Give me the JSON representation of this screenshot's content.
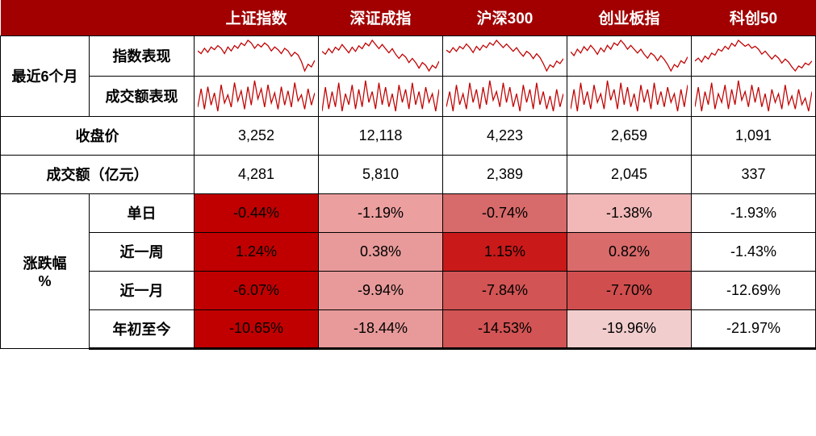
{
  "colors": {
    "header_bg": "#a20000",
    "header_text": "#ffffff",
    "border": "#000000",
    "spark_line": "#c00000",
    "cell_bg": "#ffffff",
    "heat_scale": [
      "#c00000",
      "#d94b4b",
      "#e28a8a",
      "#f0c2c2",
      "#ffffff"
    ]
  },
  "indices": [
    "上证指数",
    "深证成指",
    "沪深300",
    "创业板指",
    "科创50"
  ],
  "row_labels": {
    "six_month": "最近6个月",
    "index_perf": "指数表现",
    "volume_perf": "成交额表现",
    "close": "收盘价",
    "turnover": "成交额（亿元）",
    "change_pct": "涨跌幅\n%",
    "day": "单日",
    "week": "近一周",
    "month": "近一月",
    "ytd": "年初至今"
  },
  "close": [
    "3,252",
    "12,118",
    "4,223",
    "2,659",
    "1,091"
  ],
  "turnover": [
    "4,281",
    "5,810",
    "2,389",
    "2,045",
    "337"
  ],
  "change": {
    "day": {
      "vals": [
        "-0.44%",
        "-1.19%",
        "-0.74%",
        "-1.38%",
        "-1.93%"
      ],
      "bg": [
        "#c00000",
        "#ec9f9f",
        "#d76a6a",
        "#f2b8b8",
        "#ffffff"
      ],
      "fg": [
        "#000000",
        "#000000",
        "#000000",
        "#000000",
        "#000000"
      ]
    },
    "week": {
      "vals": [
        "1.24%",
        "0.38%",
        "1.15%",
        "0.82%",
        "-1.43%"
      ],
      "bg": [
        "#c00000",
        "#e89a9a",
        "#c91919",
        "#d96b6b",
        "#ffffff"
      ],
      "fg": [
        "#000000",
        "#000000",
        "#000000",
        "#000000",
        "#000000"
      ]
    },
    "month": {
      "vals": [
        "-6.07%",
        "-9.94%",
        "-7.84%",
        "-7.70%",
        "-12.69%"
      ],
      "bg": [
        "#c00000",
        "#e89a9a",
        "#d25454",
        "#d14e4e",
        "#ffffff"
      ],
      "fg": [
        "#000000",
        "#000000",
        "#000000",
        "#000000",
        "#000000"
      ]
    },
    "ytd": {
      "vals": [
        "-10.65%",
        "-18.44%",
        "-14.53%",
        "-19.96%",
        "-21.97%"
      ],
      "bg": [
        "#c00000",
        "#e89a9a",
        "#d25454",
        "#f2cdcd",
        "#ffffff"
      ],
      "fg": [
        "#000000",
        "#000000",
        "#000000",
        "#000000",
        "#000000"
      ]
    }
  },
  "sparklines": {
    "index_perf": [
      [
        22,
        20,
        24,
        21,
        25,
        23,
        26,
        24,
        20,
        25,
        22,
        26,
        24,
        28,
        26,
        30,
        28,
        24,
        27,
        25,
        28,
        26,
        22,
        25,
        23,
        20,
        24,
        22,
        18,
        21,
        19,
        14,
        7,
        12,
        10,
        15
      ],
      [
        20,
        18,
        22,
        19,
        23,
        21,
        25,
        22,
        19,
        23,
        20,
        24,
        22,
        26,
        24,
        28,
        25,
        22,
        25,
        22,
        19,
        22,
        18,
        15,
        18,
        16,
        12,
        15,
        12,
        8,
        12,
        10,
        6,
        10,
        8,
        13
      ],
      [
        21,
        19,
        23,
        20,
        24,
        22,
        26,
        23,
        19,
        24,
        21,
        25,
        23,
        27,
        25,
        29,
        26,
        23,
        26,
        23,
        20,
        23,
        19,
        16,
        20,
        18,
        14,
        18,
        15,
        10,
        4,
        9,
        7,
        12,
        10,
        14
      ],
      [
        18,
        15,
        20,
        17,
        22,
        19,
        23,
        20,
        16,
        21,
        18,
        23,
        20,
        25,
        23,
        27,
        24,
        20,
        23,
        20,
        17,
        20,
        16,
        13,
        17,
        15,
        11,
        15,
        12,
        8,
        3,
        8,
        6,
        11,
        9,
        14
      ],
      [
        15,
        18,
        14,
        20,
        17,
        23,
        21,
        27,
        25,
        30,
        27,
        33,
        30,
        36,
        33,
        30,
        32,
        28,
        30,
        27,
        22,
        25,
        21,
        17,
        21,
        18,
        13,
        17,
        14,
        9,
        5,
        10,
        8,
        13,
        11,
        15
      ]
    ],
    "volume_perf": [
      [
        10,
        28,
        8,
        30,
        12,
        24,
        6,
        32,
        14,
        22,
        10,
        34,
        16,
        26,
        8,
        30,
        12,
        36,
        18,
        28,
        10,
        32,
        14,
        24,
        8,
        30,
        12,
        26,
        10,
        34,
        16,
        22,
        8,
        28,
        12,
        24
      ],
      [
        8,
        30,
        10,
        26,
        12,
        34,
        8,
        24,
        14,
        32,
        10,
        28,
        12,
        36,
        16,
        26,
        10,
        34,
        14,
        30,
        12,
        24,
        8,
        32,
        16,
        28,
        10,
        34,
        14,
        26,
        10,
        30,
        16,
        24,
        8,
        28
      ],
      [
        12,
        26,
        8,
        32,
        14,
        24,
        10,
        34,
        16,
        28,
        10,
        30,
        14,
        36,
        18,
        26,
        12,
        34,
        16,
        30,
        12,
        24,
        8,
        32,
        16,
        28,
        10,
        34,
        14,
        26,
        10,
        22,
        8,
        28,
        12,
        24
      ],
      [
        10,
        28,
        8,
        34,
        14,
        26,
        10,
        32,
        16,
        24,
        10,
        36,
        18,
        28,
        10,
        34,
        14,
        30,
        12,
        24,
        8,
        32,
        16,
        28,
        10,
        34,
        14,
        26,
        12,
        30,
        16,
        24,
        8,
        28,
        12,
        32
      ],
      [
        12,
        30,
        8,
        26,
        14,
        34,
        10,
        24,
        16,
        32,
        10,
        28,
        14,
        36,
        18,
        26,
        12,
        32,
        16,
        30,
        12,
        24,
        8,
        28,
        16,
        24,
        10,
        32,
        14,
        22,
        10,
        28,
        14,
        20,
        8,
        26
      ]
    ]
  },
  "spark_style": {
    "stroke": "#c00000",
    "stroke_width": 1.3,
    "viewbox_w": 150,
    "viewbox_h": 44
  }
}
